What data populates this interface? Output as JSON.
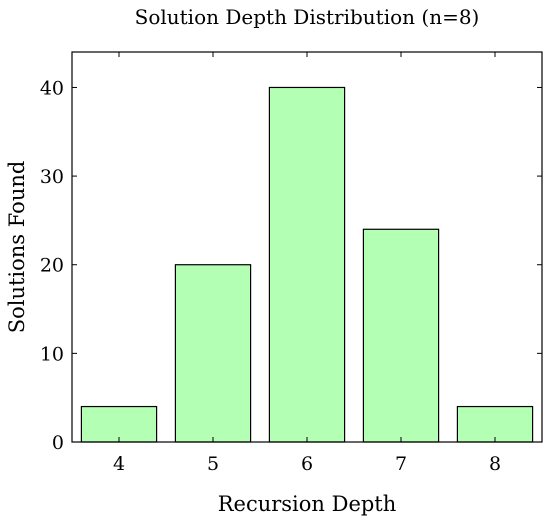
{
  "chart_data": {
    "type": "bar",
    "title": "Solution Depth Distribution (n=8)",
    "xlabel": "Recursion Depth",
    "ylabel": "Solutions Found",
    "categories": [
      "4",
      "5",
      "6",
      "7",
      "8"
    ],
    "values": [
      4,
      20,
      40,
      24,
      4
    ],
    "ylim": [
      0,
      44
    ],
    "yticks": [
      0,
      10,
      20,
      30,
      40
    ],
    "bar_color": "#b3ffb3",
    "grid": false,
    "legend": "none"
  }
}
